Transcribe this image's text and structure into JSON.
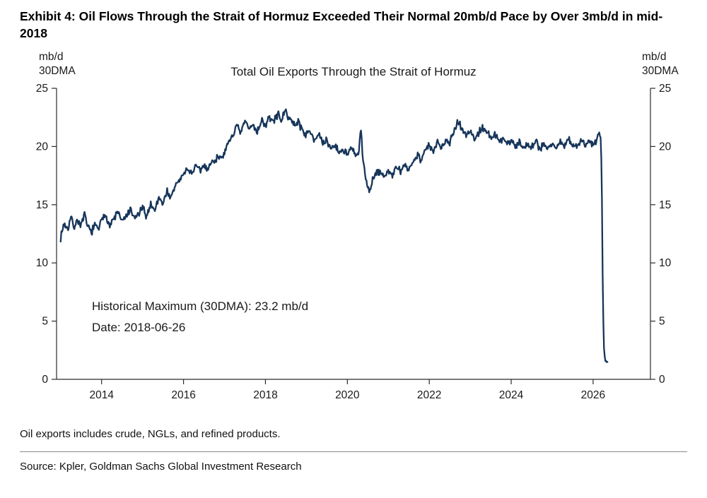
{
  "exhibit": {
    "title": "Exhibit 4: Oil Flows Through the Strait of Hormuz Exceeded Their Normal 20mb/d Pace by Over 3mb/d in mid-2018",
    "footnote": "Oil exports includes crude, NGLs, and refined products.",
    "source": "Source: Kpler, Goldman Sachs Global Investment Research"
  },
  "chart_data": {
    "type": "line",
    "title": "Total Oil Exports Through the Strait of Hormuz",
    "unit_label_lines": [
      "mb/d",
      "30DMA"
    ],
    "ylim": [
      0,
      25
    ],
    "yticks": [
      0,
      5,
      10,
      15,
      20,
      25
    ],
    "xticks": [
      2014,
      2016,
      2018,
      2020,
      2022,
      2024,
      2026
    ],
    "xlim": [
      2012.9,
      2027.4
    ],
    "grid": false,
    "legend": "none",
    "annotation": [
      "Historical Maximum (30DMA): 23.2 mb/d",
      "Date: 2018-06-26"
    ],
    "line_color": "#16355a",
    "axis_color": "#2b2b2b",
    "noise": {
      "amplitude": 0.4,
      "seed": 7,
      "points_per_year": 60
    },
    "series": [
      {
        "name": "Total Oil Exports Through the Strait of Hormuz (30DMA, mb/d)",
        "x": [
          2013.0,
          2013.08,
          2013.17,
          2013.25,
          2013.33,
          2013.42,
          2013.5,
          2013.58,
          2013.67,
          2013.75,
          2013.83,
          2013.92,
          2014.0,
          2014.1,
          2014.2,
          2014.3,
          2014.4,
          2014.5,
          2014.6,
          2014.7,
          2014.8,
          2014.9,
          2015.0,
          2015.1,
          2015.2,
          2015.3,
          2015.4,
          2015.5,
          2015.6,
          2015.7,
          2015.8,
          2015.9,
          2016.0,
          2016.1,
          2016.2,
          2016.3,
          2016.4,
          2016.5,
          2016.6,
          2016.7,
          2016.8,
          2016.9,
          2017.0,
          2017.1,
          2017.2,
          2017.3,
          2017.4,
          2017.5,
          2017.6,
          2017.7,
          2017.8,
          2017.9,
          2018.0,
          2018.1,
          2018.2,
          2018.3,
          2018.4,
          2018.49,
          2018.6,
          2018.7,
          2018.8,
          2018.9,
          2019.0,
          2019.1,
          2019.2,
          2019.3,
          2019.4,
          2019.5,
          2019.6,
          2019.7,
          2019.8,
          2019.9,
          2020.0,
          2020.1,
          2020.2,
          2020.28,
          2020.33,
          2020.38,
          2020.45,
          2020.5,
          2020.55,
          2020.62,
          2020.7,
          2020.8,
          2020.9,
          2021.0,
          2021.1,
          2021.2,
          2021.3,
          2021.4,
          2021.5,
          2021.6,
          2021.7,
          2021.8,
          2021.9,
          2022.0,
          2022.1,
          2022.2,
          2022.3,
          2022.4,
          2022.5,
          2022.6,
          2022.7,
          2022.8,
          2022.9,
          2023.0,
          2023.1,
          2023.2,
          2023.3,
          2023.4,
          2023.5,
          2023.6,
          2023.7,
          2023.8,
          2023.9,
          2024.0,
          2024.1,
          2024.2,
          2024.3,
          2024.4,
          2024.5,
          2024.6,
          2024.7,
          2024.8,
          2024.9,
          2025.0,
          2025.1,
          2025.2,
          2025.3,
          2025.4,
          2025.5,
          2025.6,
          2025.7,
          2025.8,
          2025.9,
          2026.0,
          2026.08,
          2026.14,
          2026.18,
          2026.21,
          2026.23,
          2026.25,
          2026.27,
          2026.3,
          2026.35
        ],
        "y": [
          12.2,
          13.4,
          12.9,
          13.9,
          13.1,
          13.7,
          13.2,
          14.1,
          13.0,
          12.7,
          13.2,
          12.9,
          13.6,
          14.2,
          13.2,
          13.8,
          14.4,
          13.5,
          14.0,
          14.5,
          13.8,
          14.2,
          14.7,
          14.0,
          15.1,
          14.5,
          15.7,
          15.1,
          16.2,
          15.5,
          16.7,
          17.1,
          17.6,
          18.1,
          17.7,
          18.3,
          17.9,
          18.4,
          18.1,
          18.7,
          18.9,
          19.3,
          19.2,
          20.4,
          21.0,
          21.7,
          21.1,
          22.2,
          21.5,
          21.9,
          21.2,
          22.3,
          21.8,
          22.5,
          22.1,
          22.8,
          22.3,
          23.0,
          22.4,
          21.8,
          22.2,
          21.4,
          21.0,
          21.4,
          20.6,
          21.0,
          20.2,
          20.5,
          19.8,
          20.2,
          19.4,
          19.8,
          19.3,
          19.8,
          19.2,
          19.5,
          21.5,
          18.8,
          17.3,
          16.6,
          16.2,
          17.2,
          17.6,
          17.9,
          17.3,
          18.0,
          17.5,
          18.2,
          17.8,
          18.4,
          18.0,
          18.7,
          19.3,
          18.9,
          19.7,
          20.1,
          19.5,
          20.3,
          19.9,
          20.7,
          20.3,
          21.3,
          22.3,
          21.5,
          21.0,
          21.3,
          20.7,
          21.1,
          21.7,
          21.3,
          20.7,
          21.0,
          20.4,
          20.8,
          20.2,
          20.6,
          20.0,
          20.4,
          19.8,
          20.3,
          20.0,
          20.5,
          19.8,
          20.2,
          19.9,
          20.3,
          19.8,
          20.4,
          20.0,
          20.6,
          20.2,
          20.0,
          20.5,
          20.1,
          20.4,
          20.2,
          20.6,
          21.2,
          20.9,
          18.0,
          10.0,
          5.0,
          2.2,
          1.6,
          1.5
        ]
      }
    ]
  }
}
